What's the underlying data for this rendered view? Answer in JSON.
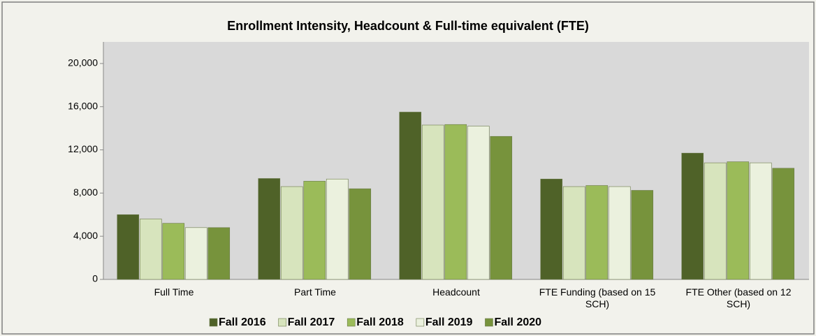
{
  "chart_data": {
    "type": "bar",
    "title": "Enrollment Intensity, Headcount  & Full-time equivalent (FTE)",
    "categories": [
      "Full Time",
      "Part Time",
      "Headcount",
      "FTE Funding (based on 15 SCH)",
      "FTE Other (based on 12 SCH)"
    ],
    "series": [
      {
        "name": "Fall 2016",
        "color": "#4f6228",
        "values": [
          6000,
          9350,
          15500,
          9300,
          11700
        ]
      },
      {
        "name": "Fall 2017",
        "color": "#d7e4bd",
        "values": [
          5600,
          8600,
          14300,
          8600,
          10800
        ]
      },
      {
        "name": "Fall 2018",
        "color": "#9bbb59",
        "values": [
          5200,
          9100,
          14350,
          8700,
          10900
        ]
      },
      {
        "name": "Fall 2019",
        "color": "#ebf1de",
        "values": [
          4800,
          9300,
          14200,
          8600,
          10800
        ]
      },
      {
        "name": "Fall 2020",
        "color": "#77933c",
        "values": [
          4800,
          8400,
          13250,
          8250,
          10300
        ]
      }
    ],
    "ylim": [
      0,
      22000
    ],
    "yticks": [
      0,
      {
        "value": 4000,
        "label": "4,000"
      },
      {
        "value": 8000,
        "label": "8,000"
      },
      {
        "value": 12000,
        "label": "12,000"
      },
      {
        "value": 16000,
        "label": "16,000"
      },
      {
        "value": 20000,
        "label": "20,000"
      }
    ],
    "grid": false
  }
}
